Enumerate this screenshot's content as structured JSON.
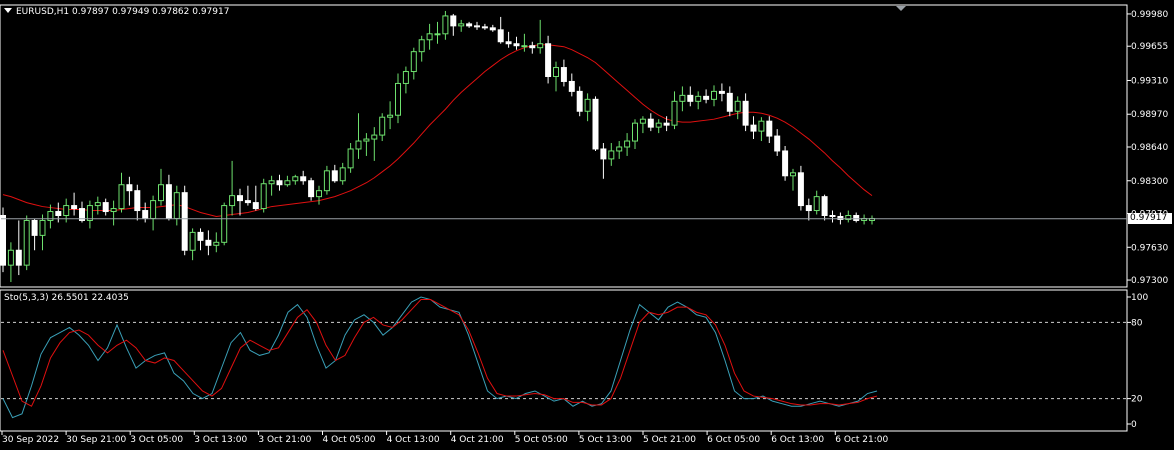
{
  "main_panel": {
    "symbol": "EURUSD,H1",
    "ohlc": "0.97897 0.97949 0.97862 0.97917",
    "current_price": "0.97917",
    "price_ticks": [
      "0.99980",
      "0.99655",
      "0.99310",
      "0.98970",
      "0.98640",
      "0.98300",
      "0.97970",
      "0.97630",
      "0.97300"
    ],
    "ylim": [
      0.9724,
      1.0006
    ],
    "colors": {
      "bull": "#6ee16e",
      "bear": "#ffffff",
      "ma": "#e01010",
      "grid": "#ffffff",
      "current_line": "#9aa0a6"
    }
  },
  "stoch_panel": {
    "title": "Sto(5,3,3) 26.5501 22.4035",
    "levels": [
      "100",
      "80",
      "20",
      "0"
    ],
    "colors": {
      "main": "#3aa0b8",
      "signal": "#e01010"
    }
  },
  "time_axis": {
    "labels": [
      "30 Sep 2022",
      "30 Sep 21:00",
      "3 Oct 05:00",
      "3 Oct 13:00",
      "3 Oct 21:00",
      "4 Oct 05:00",
      "4 Oct 13:00",
      "4 Oct 21:00",
      "5 Oct 05:00",
      "5 Oct 13:00",
      "5 Oct 21:00",
      "6 Oct 05:00",
      "6 Oct 13:00",
      "6 Oct 21:00"
    ]
  },
  "chart_data": [
    {
      "type": "candlestick",
      "title": "EURUSD,H1",
      "ylim": [
        0.9724,
        1.0006
      ],
      "candles": [
        [
          0.9795,
          0.9803,
          0.9738,
          0.9745
        ],
        [
          0.9745,
          0.9768,
          0.9728,
          0.976
        ],
        [
          0.976,
          0.979,
          0.9735,
          0.9745
        ],
        [
          0.9745,
          0.9795,
          0.974,
          0.979
        ],
        [
          0.979,
          0.9792,
          0.976,
          0.9775
        ],
        [
          0.9775,
          0.9796,
          0.976,
          0.979
        ],
        [
          0.979,
          0.9806,
          0.9782,
          0.9799
        ],
        [
          0.9799,
          0.9808,
          0.9788,
          0.9795
        ],
        [
          0.9795,
          0.9812,
          0.9788,
          0.9805
        ],
        [
          0.9805,
          0.9818,
          0.9795,
          0.9802
        ],
        [
          0.9802,
          0.9809,
          0.9788,
          0.979
        ],
        [
          0.979,
          0.981,
          0.9782,
          0.9805
        ],
        [
          0.9805,
          0.9814,
          0.9796,
          0.9808
        ],
        [
          0.9808,
          0.9812,
          0.9795,
          0.9799
        ],
        [
          0.9799,
          0.981,
          0.9785,
          0.9802
        ],
        [
          0.9802,
          0.9838,
          0.9798,
          0.9826
        ],
        [
          0.9826,
          0.9834,
          0.9805,
          0.982
        ],
        [
          0.982,
          0.9826,
          0.979,
          0.98
        ],
        [
          0.98,
          0.9808,
          0.9788,
          0.9792
        ],
        [
          0.9792,
          0.9815,
          0.978,
          0.981
        ],
        [
          0.981,
          0.9842,
          0.9805,
          0.9826
        ],
        [
          0.9826,
          0.9836,
          0.979,
          0.9792
        ],
        [
          0.9792,
          0.9825,
          0.9785,
          0.9818
        ],
        [
          0.9818,
          0.9825,
          0.9755,
          0.976
        ],
        [
          0.976,
          0.9782,
          0.975,
          0.9778
        ],
        [
          0.9778,
          0.9782,
          0.976,
          0.977
        ],
        [
          0.977,
          0.978,
          0.9755,
          0.9765
        ],
        [
          0.9765,
          0.9778,
          0.9758,
          0.9768
        ],
        [
          0.9768,
          0.9808,
          0.9765,
          0.9805
        ],
        [
          0.9805,
          0.985,
          0.9795,
          0.9815
        ],
        [
          0.9815,
          0.9822,
          0.9795,
          0.981
        ],
        [
          0.981,
          0.9825,
          0.9805,
          0.9808
        ],
        [
          0.9808,
          0.9825,
          0.98,
          0.9802
        ],
        [
          0.9802,
          0.9832,
          0.9798,
          0.9827
        ],
        [
          0.9827,
          0.9835,
          0.9815,
          0.983
        ],
        [
          0.983,
          0.9836,
          0.982,
          0.9826
        ],
        [
          0.9826,
          0.9835,
          0.9824,
          0.983
        ],
        [
          0.983,
          0.9836,
          0.9826,
          0.9834
        ],
        [
          0.9834,
          0.984,
          0.9826,
          0.983
        ],
        [
          0.983,
          0.9833,
          0.981,
          0.9814
        ],
        [
          0.9814,
          0.9825,
          0.9806,
          0.982
        ],
        [
          0.982,
          0.9845,
          0.9816,
          0.984
        ],
        [
          0.984,
          0.9846,
          0.9828,
          0.983
        ],
        [
          0.983,
          0.9848,
          0.9826,
          0.9843
        ],
        [
          0.9843,
          0.9868,
          0.9838,
          0.9862
        ],
        [
          0.9862,
          0.9898,
          0.9852,
          0.987
        ],
        [
          0.987,
          0.9878,
          0.9855,
          0.9872
        ],
        [
          0.9872,
          0.9884,
          0.985,
          0.9876
        ],
        [
          0.9876,
          0.9898,
          0.987,
          0.9894
        ],
        [
          0.9894,
          0.991,
          0.9882,
          0.9896
        ],
        [
          0.9896,
          0.9938,
          0.9888,
          0.9928
        ],
        [
          0.9928,
          0.9945,
          0.9918,
          0.994
        ],
        [
          0.994,
          0.9964,
          0.9932,
          0.996
        ],
        [
          0.996,
          0.9976,
          0.995,
          0.9972
        ],
        [
          0.9972,
          0.9988,
          0.9962,
          0.9978
        ],
        [
          0.9978,
          0.999,
          0.9968,
          0.9978
        ],
        [
          0.9978,
          1.0001,
          0.9972,
          0.9996
        ],
        [
          0.9996,
          0.9998,
          0.9976,
          0.9986
        ],
        [
          0.9986,
          0.9992,
          0.998,
          0.9988
        ],
        [
          0.9988,
          0.999,
          0.9984,
          0.9986
        ],
        [
          0.9986,
          0.999,
          0.9982,
          0.9985
        ],
        [
          0.9985,
          0.9988,
          0.9982,
          0.9984
        ],
        [
          0.9984,
          0.9987,
          0.998,
          0.9982
        ],
        [
          0.9982,
          0.9995,
          0.9968,
          0.997
        ],
        [
          0.997,
          0.998,
          0.9964,
          0.9968
        ],
        [
          0.9968,
          0.9975,
          0.9962,
          0.9966
        ],
        [
          0.9966,
          0.9978,
          0.996,
          0.9966
        ],
        [
          0.9966,
          0.997,
          0.9958,
          0.9964
        ],
        [
          0.9964,
          0.9992,
          0.9958,
          0.9968
        ],
        [
          0.9968,
          0.9976,
          0.9928,
          0.9935
        ],
        [
          0.9935,
          0.995,
          0.992,
          0.9944
        ],
        [
          0.9944,
          0.9952,
          0.9925,
          0.993
        ],
        [
          0.993,
          0.9938,
          0.9915,
          0.992
        ],
        [
          0.992,
          0.9925,
          0.9895,
          0.99
        ],
        [
          0.99,
          0.9918,
          0.989,
          0.9912
        ],
        [
          0.9912,
          0.9915,
          0.986,
          0.9862
        ],
        [
          0.9862,
          0.9868,
          0.9832,
          0.9852
        ],
        [
          0.9852,
          0.9868,
          0.9845,
          0.986
        ],
        [
          0.986,
          0.987,
          0.9852,
          0.9864
        ],
        [
          0.9864,
          0.9878,
          0.9855,
          0.987
        ],
        [
          0.987,
          0.9892,
          0.9862,
          0.9888
        ],
        [
          0.9888,
          0.9895,
          0.9878,
          0.9892
        ],
        [
          0.9892,
          0.9898,
          0.988,
          0.9884
        ],
        [
          0.9884,
          0.9892,
          0.9878,
          0.9888
        ],
        [
          0.9888,
          0.9895,
          0.988,
          0.9886
        ],
        [
          0.9886,
          0.992,
          0.9882,
          0.991
        ],
        [
          0.991,
          0.9925,
          0.99,
          0.9916
        ],
        [
          0.9916,
          0.9925,
          0.9905,
          0.991
        ],
        [
          0.991,
          0.992,
          0.9902,
          0.9915
        ],
        [
          0.9915,
          0.9922,
          0.9908,
          0.9912
        ],
        [
          0.9912,
          0.9926,
          0.9905,
          0.992
        ],
        [
          0.992,
          0.9928,
          0.991,
          0.9918
        ],
        [
          0.9918,
          0.9925,
          0.9895,
          0.99
        ],
        [
          0.99,
          0.9915,
          0.9892,
          0.991
        ],
        [
          0.991,
          0.9918,
          0.988,
          0.9886
        ],
        [
          0.9886,
          0.9895,
          0.9872,
          0.988
        ],
        [
          0.988,
          0.9894,
          0.987,
          0.989
        ],
        [
          0.989,
          0.9895,
          0.9868,
          0.9875
        ],
        [
          0.9875,
          0.9882,
          0.9855,
          0.986
        ],
        [
          0.986,
          0.9865,
          0.983,
          0.9835
        ],
        [
          0.9835,
          0.9842,
          0.982,
          0.9838
        ],
        [
          0.9838,
          0.9845,
          0.98,
          0.9805
        ],
        [
          0.9805,
          0.9812,
          0.979,
          0.98
        ],
        [
          0.98,
          0.982,
          0.9796,
          0.9814
        ],
        [
          0.9814,
          0.9816,
          0.979,
          0.9795
        ],
        [
          0.9795,
          0.98,
          0.9788,
          0.9794
        ],
        [
          0.9794,
          0.9798,
          0.9786,
          0.9791
        ],
        [
          0.9791,
          0.98,
          0.9788,
          0.9795
        ],
        [
          0.9795,
          0.9798,
          0.9788,
          0.979
        ],
        [
          0.979,
          0.9796,
          0.9786,
          0.9792
        ],
        [
          0.979,
          0.9795,
          0.9786,
          0.9792
        ]
      ],
      "ma_line": [
        0.9816,
        0.9814,
        0.9811,
        0.9808,
        0.9806,
        0.9804,
        0.9803,
        0.9802,
        0.9801,
        0.9801,
        0.9801,
        0.98,
        0.98,
        0.98,
        0.98,
        0.9801,
        0.9802,
        0.9803,
        0.9803,
        0.9803,
        0.9804,
        0.9805,
        0.9806,
        0.9804,
        0.9801,
        0.9798,
        0.9796,
        0.9794,
        0.9795,
        0.9796,
        0.9797,
        0.9798,
        0.98,
        0.9802,
        0.9804,
        0.9805,
        0.9806,
        0.9807,
        0.9808,
        0.9809,
        0.981,
        0.9812,
        0.9814,
        0.9817,
        0.982,
        0.9824,
        0.9828,
        0.9833,
        0.9839,
        0.9845,
        0.9852,
        0.986,
        0.9868,
        0.9877,
        0.9886,
        0.9894,
        0.9902,
        0.9911,
        0.9919,
        0.9926,
        0.9933,
        0.994,
        0.9946,
        0.9952,
        0.9957,
        0.9961,
        0.9964,
        0.9966,
        0.9967,
        0.9967,
        0.9966,
        0.9965,
        0.9962,
        0.9958,
        0.9954,
        0.9949,
        0.9942,
        0.9935,
        0.9928,
        0.9921,
        0.9914,
        0.9907,
        0.9901,
        0.9896,
        0.9892,
        0.989,
        0.9889,
        0.9889,
        0.989,
        0.9891,
        0.9892,
        0.9894,
        0.9896,
        0.9898,
        0.9899,
        0.9899,
        0.9898,
        0.9896,
        0.9893,
        0.9889,
        0.9884,
        0.9878,
        0.9872,
        0.9865,
        0.9858,
        0.985,
        0.9843,
        0.9835,
        0.9828,
        0.9821,
        0.9815
      ]
    },
    {
      "type": "line",
      "title": "Sto(5,3,3) 26.5501 22.4035",
      "ylim": [
        0,
        100
      ],
      "series": [
        {
          "values": [
            20,
            5,
            8,
            30,
            55,
            68,
            72,
            76,
            70,
            62,
            50,
            60,
            78,
            60,
            44,
            50,
            54,
            56,
            40,
            34,
            24,
            20,
            24,
            44,
            64,
            72,
            58,
            54,
            56,
            70,
            88,
            94,
            84,
            62,
            44,
            50,
            70,
            82,
            86,
            80,
            70,
            76,
            86,
            96,
            102,
            98,
            92,
            90,
            88,
            70,
            48,
            26,
            20,
            22,
            20,
            24,
            26,
            22,
            18,
            20,
            14,
            18,
            14,
            16,
            26,
            50,
            74,
            94,
            88,
            82,
            92,
            96,
            92,
            86,
            84,
            72,
            50,
            26,
            20,
            20,
            22,
            18,
            16,
            14,
            14,
            16,
            18,
            16,
            14,
            16,
            18,
            24,
            26
          ]
        },
        {
          "values": [
            58,
            38,
            18,
            14,
            30,
            52,
            64,
            72,
            74,
            70,
            62,
            56,
            62,
            66,
            60,
            50,
            48,
            52,
            50,
            42,
            34,
            26,
            22,
            28,
            44,
            60,
            66,
            62,
            58,
            60,
            72,
            84,
            90,
            80,
            62,
            50,
            54,
            68,
            80,
            84,
            78,
            76,
            82,
            90,
            98,
            98,
            94,
            90,
            86,
            74,
            56,
            36,
            24,
            22,
            22,
            23,
            24,
            23,
            20,
            20,
            17,
            17,
            15,
            15,
            20,
            36,
            58,
            80,
            88,
            86,
            88,
            92,
            92,
            88,
            86,
            78,
            62,
            40,
            26,
            22,
            21,
            20,
            18,
            16,
            15,
            15,
            16,
            16,
            15,
            16,
            17,
            20,
            22
          ]
        }
      ]
    }
  ]
}
